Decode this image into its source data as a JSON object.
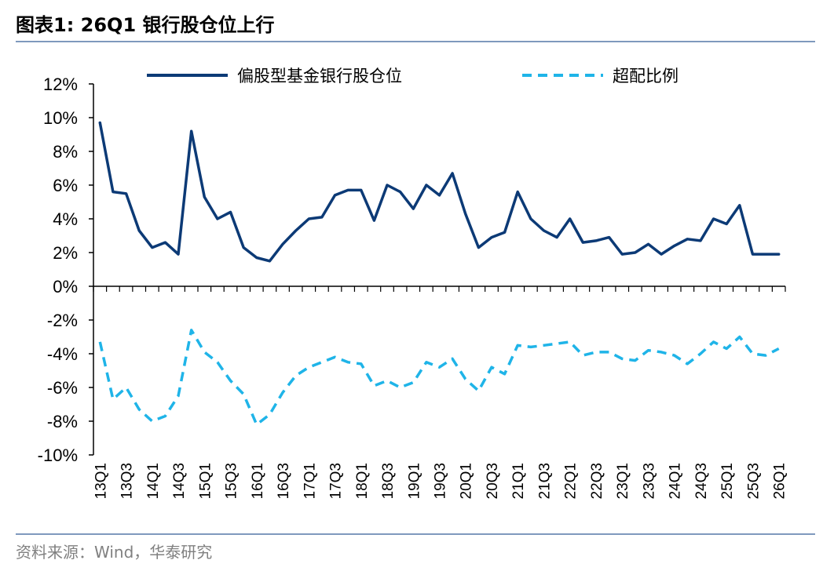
{
  "figure": {
    "title": "图表1:  26Q1 银行股仓位上行",
    "source": "资料来源：Wind，华泰研究"
  },
  "chart_data": {
    "type": "line",
    "x": [
      "13Q1",
      "13Q2",
      "13Q3",
      "13Q4",
      "14Q1",
      "14Q2",
      "14Q3",
      "14Q4",
      "15Q1",
      "15Q2",
      "15Q3",
      "15Q4",
      "16Q1",
      "16Q2",
      "16Q3",
      "16Q4",
      "17Q1",
      "17Q2",
      "17Q3",
      "17Q4",
      "18Q1",
      "18Q2",
      "18Q3",
      "18Q4",
      "19Q1",
      "19Q2",
      "19Q3",
      "19Q4",
      "20Q1",
      "20Q2",
      "20Q3",
      "20Q4",
      "21Q1",
      "21Q2",
      "21Q3",
      "21Q4",
      "22Q1",
      "22Q2",
      "22Q3",
      "22Q4",
      "23Q1",
      "23Q2",
      "23Q3",
      "23Q4",
      "24Q1",
      "24Q2",
      "24Q3",
      "24Q4",
      "25Q1",
      "25Q2",
      "25Q3",
      "25Q4",
      "26Q1"
    ],
    "x_tick_labels": [
      "13Q1",
      "13Q3",
      "14Q1",
      "14Q3",
      "15Q1",
      "15Q3",
      "16Q1",
      "16Q3",
      "17Q1",
      "17Q3",
      "18Q1",
      "18Q3",
      "19Q1",
      "19Q3",
      "20Q1",
      "20Q3",
      "21Q1",
      "21Q3",
      "22Q1",
      "22Q3",
      "23Q1",
      "23Q3",
      "24Q1",
      "24Q3",
      "25Q1",
      "25Q3",
      "26Q1"
    ],
    "y_tick_labels": [
      "12%",
      "10%",
      "8%",
      "6%",
      "4%",
      "2%",
      "0%",
      "-2%",
      "-4%",
      "-6%",
      "-8%",
      "-10%"
    ],
    "ylim": [
      -10,
      12
    ],
    "y_unit": "%",
    "grid": false,
    "legend_position": "top",
    "series": [
      {
        "name": "偏股型基金银行股仓位",
        "style": "solid",
        "color": "#0c3a76",
        "values": [
          9.7,
          5.6,
          5.5,
          3.3,
          2.3,
          2.6,
          1.9,
          9.2,
          5.3,
          4.0,
          4.4,
          2.3,
          1.7,
          1.5,
          2.5,
          3.3,
          4.0,
          4.1,
          5.4,
          5.7,
          5.7,
          3.9,
          6.0,
          5.6,
          4.6,
          6.0,
          5.4,
          6.7,
          4.3,
          2.3,
          2.9,
          3.2,
          5.6,
          4.0,
          3.3,
          2.9,
          4.0,
          2.6,
          2.7,
          2.9,
          1.9,
          2.0,
          2.5,
          1.9,
          2.4,
          2.8,
          2.7,
          4.0,
          3.7,
          4.8,
          1.9,
          1.9,
          1.9
        ]
      },
      {
        "name": "超配比例",
        "style": "dashed",
        "color": "#1fb4e8",
        "values": [
          -3.3,
          -6.7,
          -6.0,
          -7.3,
          -8.0,
          -7.7,
          -6.5,
          -2.6,
          -3.9,
          -4.5,
          -5.6,
          -6.4,
          -8.2,
          -7.6,
          -6.3,
          -5.3,
          -4.8,
          -4.5,
          -4.2,
          -4.5,
          -4.6,
          -5.9,
          -5.6,
          -6.0,
          -5.7,
          -4.5,
          -4.8,
          -4.3,
          -5.5,
          -6.2,
          -4.8,
          -5.2,
          -3.5,
          -3.6,
          -3.5,
          -3.4,
          -3.3,
          -4.1,
          -3.9,
          -3.9,
          -4.3,
          -4.4,
          -3.8,
          -3.9,
          -4.1,
          -4.6,
          -4.0,
          -3.3,
          -3.7,
          -3.0,
          -4.0,
          -4.1,
          -3.7
        ]
      }
    ]
  }
}
